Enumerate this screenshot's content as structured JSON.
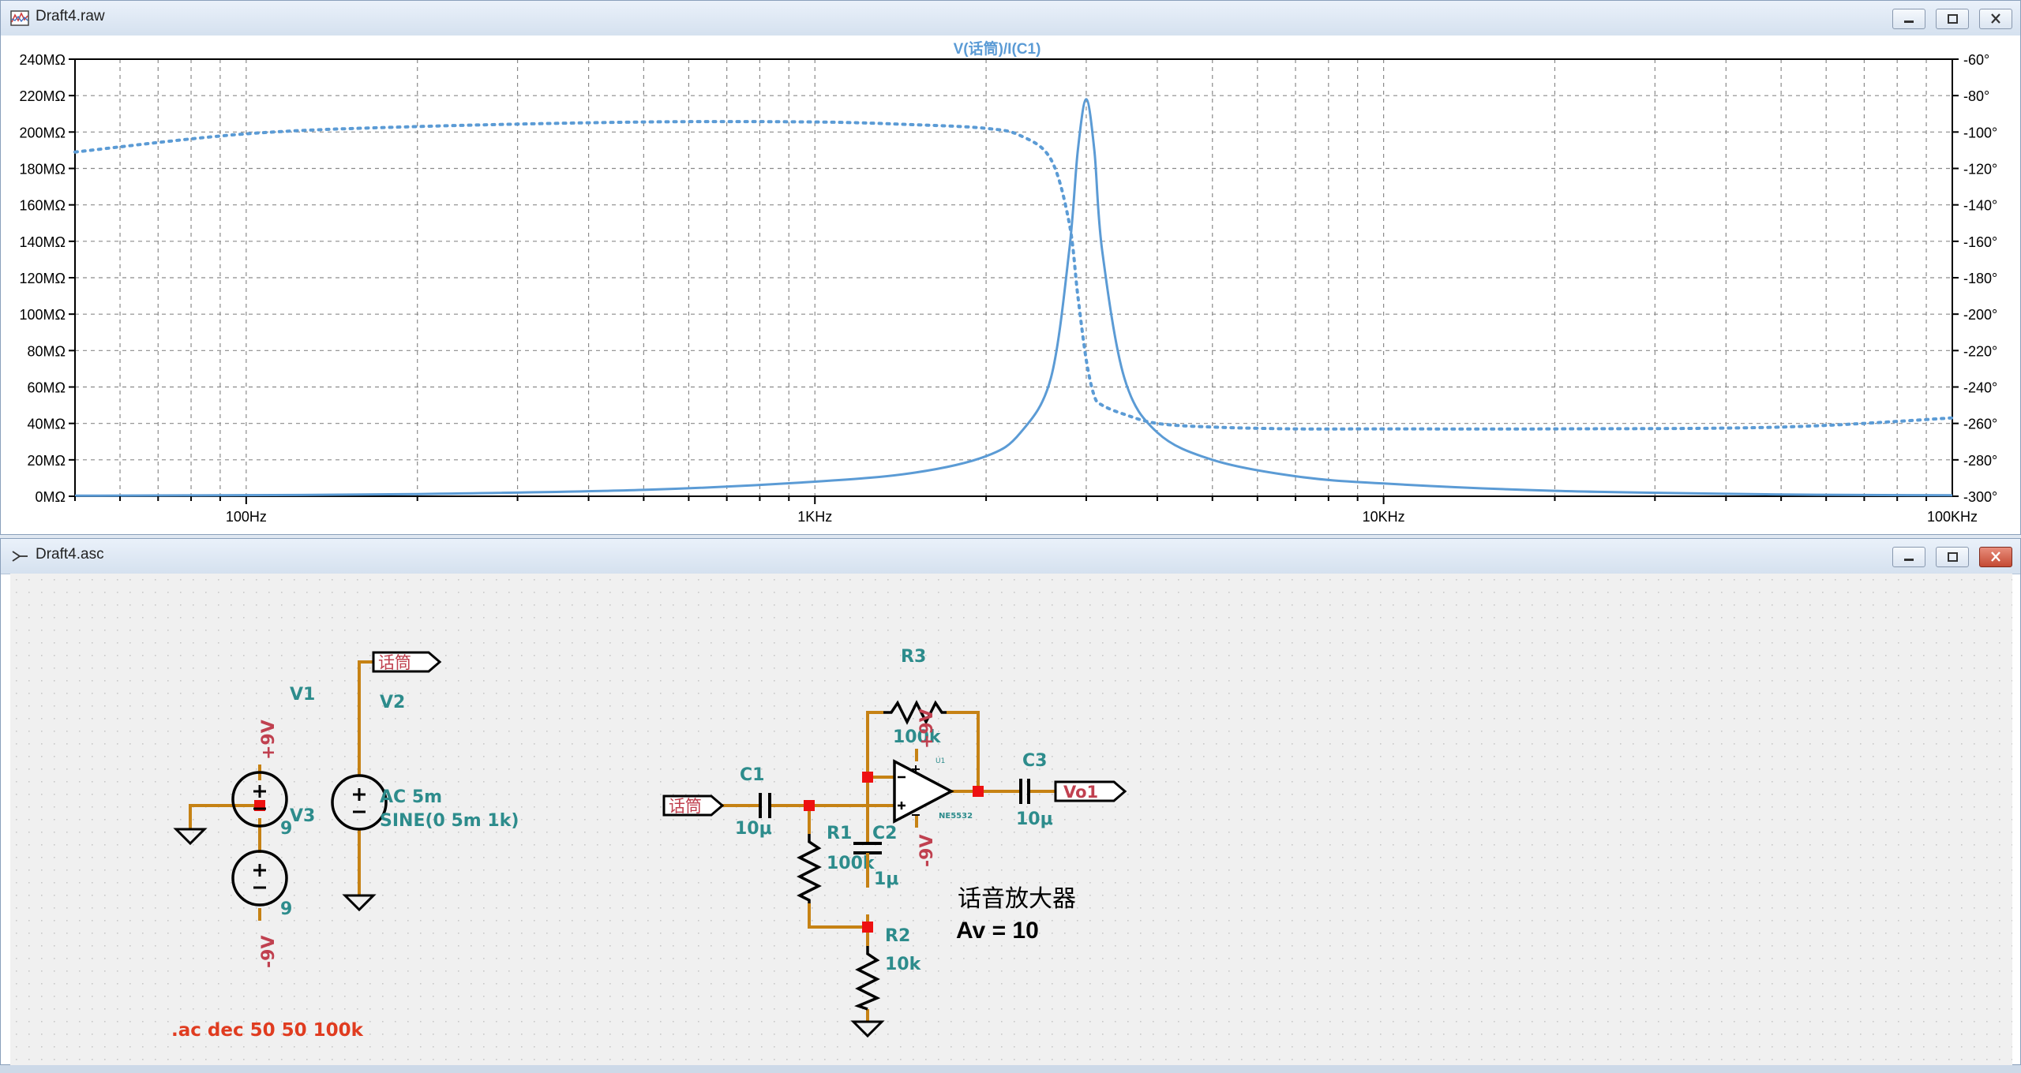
{
  "waveform_window": {
    "title": "Draft4.raw",
    "trace_label": "V(话筒)/I(C1)",
    "left_axis_ticks": [
      "240MΩ",
      "220MΩ",
      "200MΩ",
      "180MΩ",
      "160MΩ",
      "140MΩ",
      "120MΩ",
      "100MΩ",
      "80MΩ",
      "60MΩ",
      "40MΩ",
      "20MΩ",
      "0MΩ"
    ],
    "right_axis_ticks": [
      "-60°",
      "-80°",
      "-100°",
      "-120°",
      "-140°",
      "-160°",
      "-180°",
      "-200°",
      "-220°",
      "-240°",
      "-260°",
      "-280°",
      "-300°"
    ],
    "x_axis_ticks": [
      "100Hz",
      "1KHz",
      "10KHz",
      "100KHz"
    ],
    "trace_color": "#5b9bd5"
  },
  "schematic_window": {
    "title": "Draft4.asc",
    "wire_color": "#c68214",
    "label_color": "#2d8c8c",
    "power_color": "#c0404f",
    "directive_color": "#e03c20",
    "components": {
      "v1_name": "V1",
      "v1_value": "9",
      "v1_net": "+9V",
      "v3_name": "V3",
      "v3_value": "9",
      "v3_net": "-9V",
      "v2_name": "V2",
      "v2_ac": "AC 5m",
      "v2_sine": "SINE(0 5m 1k)",
      "v2_net": "话筒",
      "c1_name": "C1",
      "c1_value": "10μ",
      "input_net": "话筒",
      "r1_name": "R1",
      "r1_value": "100k",
      "c2_name": "C2",
      "c2_value": "1μ",
      "r2_name": "R2",
      "r2_value": "10k",
      "r3_name": "R3",
      "r3_value": "100k",
      "u1_name": "U1",
      "u1_part": "NE5532",
      "u1_vpos": "+9V",
      "u1_vneg": "-9V",
      "c3_name": "C3",
      "c3_value": "10μ",
      "output_net": "Vo1"
    },
    "comment_title": "话音放大器",
    "comment_gain": "Av = 10",
    "spice_directive": ".ac dec 50 50 100k"
  },
  "chart_data": {
    "type": "line",
    "title": "V(话筒)/I(C1)",
    "x_scale": "log",
    "xlim": [
      50,
      100000
    ],
    "x_tick_labels": [
      "100Hz",
      "1KHz",
      "10KHz",
      "100KHz"
    ],
    "ylim_left": [
      0,
      240
    ],
    "ylim_left_unit": "MΩ",
    "ylim_right": [
      -300,
      -60
    ],
    "ylim_right_unit": "°",
    "grid": true,
    "series": [
      {
        "name": "magnitude",
        "axis": "left",
        "style": "solid",
        "x": [
          50,
          100,
          200,
          500,
          1000,
          1500,
          2000,
          2300,
          2600,
          2800,
          2900,
          3000,
          3100,
          3200,
          3500,
          4000,
          5000,
          7000,
          10000,
          20000,
          50000,
          100000
        ],
        "y": [
          0.3,
          0.6,
          1.2,
          3.5,
          8,
          13,
          22,
          35,
          65,
          135,
          190,
          218,
          190,
          135,
          65,
          35,
          20,
          11,
          7,
          3,
          1,
          0.5
        ]
      },
      {
        "name": "phase",
        "axis": "right",
        "style": "dotted",
        "x": [
          50,
          100,
          200,
          500,
          1000,
          1500,
          2000,
          2300,
          2600,
          2800,
          2900,
          3000,
          3100,
          3200,
          3500,
          4000,
          5000,
          7000,
          10000,
          20000,
          50000,
          100000
        ],
        "y": [
          -111,
          -101,
          -97,
          -94.5,
          -94.5,
          -96,
          -98,
          -102,
          -115,
          -150,
          -190,
          -225,
          -245,
          -250,
          -255,
          -260,
          -262,
          -263,
          -263,
          -263,
          -262,
          -257
        ]
      }
    ]
  }
}
